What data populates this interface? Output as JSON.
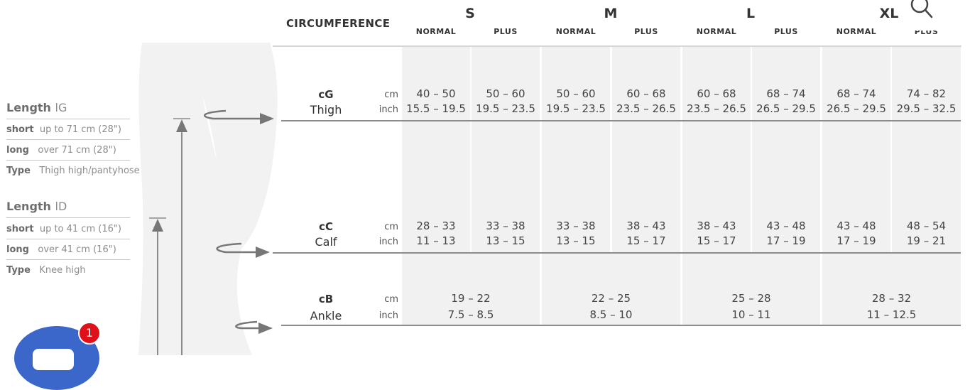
{
  "lengths": [
    {
      "title": "Length",
      "code": "lG",
      "rows": [
        {
          "key": "short",
          "val": "up to 71 cm (28\")"
        },
        {
          "key": "long",
          "val": "over 71 cm (28\")"
        },
        {
          "key": "Type",
          "val": "Thigh high/pantyhose"
        }
      ]
    },
    {
      "title": "Length",
      "code": "lD",
      "rows": [
        {
          "key": "short",
          "val": "up to 41 cm (16\")"
        },
        {
          "key": "long",
          "val": "over 41 cm (16\")"
        },
        {
          "key": "Type",
          "val": "Knee high"
        }
      ]
    }
  ],
  "table": {
    "header": "CIRCUMFERENCE",
    "sizes": [
      "S",
      "M",
      "L",
      "XL"
    ],
    "subheads": [
      "NORMAL",
      "PLUS",
      "NORMAL",
      "PLUS",
      "NORMAL",
      "PLUS",
      "NORMAL",
      "PLUS"
    ],
    "units": [
      "cm",
      "inch"
    ],
    "thigh": {
      "code": "cG",
      "name": "Thigh",
      "cm": [
        "40 – 50",
        "50 – 60",
        "50 – 60",
        "60 – 68",
        "60 – 68",
        "68 – 74",
        "68 – 74",
        "74 – 82"
      ],
      "inch": [
        "15.5 – 19.5",
        "19.5 – 23.5",
        "19.5 – 23.5",
        "23.5 – 26.5",
        "23.5 – 26.5",
        "26.5 – 29.5",
        "26.5 – 29.5",
        "29.5 – 32.5"
      ]
    },
    "calf": {
      "code": "cC",
      "name": "Calf",
      "cm": [
        "28 – 33",
        "33 – 38",
        "33 – 38",
        "38 – 43",
        "38 – 43",
        "43 – 48",
        "43 – 48",
        "48 – 54"
      ],
      "inch": [
        "11 – 13",
        "13 – 15",
        "13 – 15",
        "15 – 17",
        "15 – 17",
        "17 – 19",
        "17 – 19",
        "19 – 21"
      ]
    },
    "ankle": {
      "code": "cB",
      "name": "Ankle",
      "cm": [
        "19 – 22",
        "22 – 25",
        "25 – 28",
        "28 – 32"
      ],
      "inch": [
        "7.5 – 8.5",
        "8.5 – 10",
        "10 – 11",
        "11 – 12.5"
      ]
    }
  },
  "chat": {
    "badge": "1"
  },
  "colors": {
    "chat": "#3a67c9",
    "badge": "#e0101a",
    "cell_bg": "#f1f1f1"
  },
  "icons": {
    "search": "search-icon",
    "chat": "chat-icon"
  }
}
